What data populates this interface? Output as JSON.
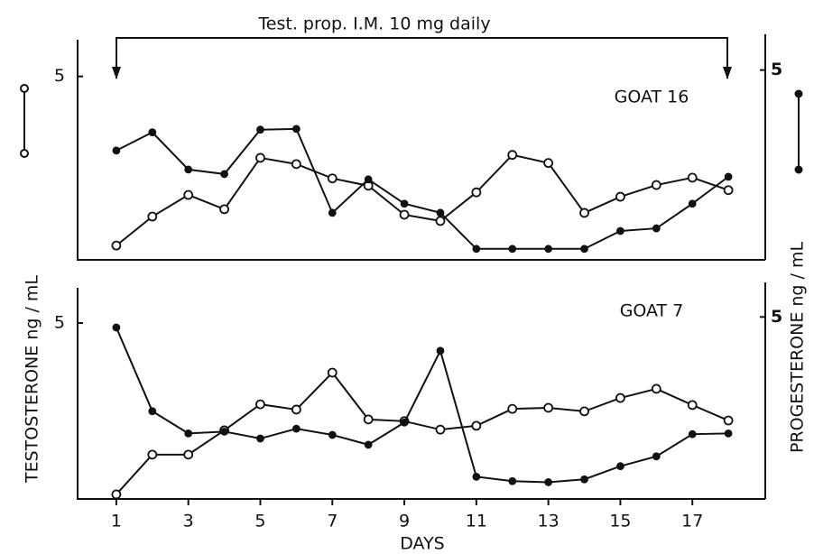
{
  "chart_data": [
    {
      "type": "line",
      "title": "GOAT 16",
      "annotation": "Test.  prop.  I.M.    10 mg  daily",
      "ylabel": "TESTOSTERONE  ng / mL",
      "y2label": "PROGESTERONE  ng / mL",
      "x": [
        1,
        2,
        3,
        4,
        5,
        6,
        7,
        8,
        9,
        10,
        11,
        12,
        13,
        14,
        15,
        16,
        17,
        18
      ],
      "xlim": [
        0,
        19
      ],
      "ylim": [
        0,
        6
      ],
      "yticks": [
        5
      ],
      "y2lim": [
        0,
        5.8
      ],
      "y2ticks": [
        5
      ],
      "series": [
        {
          "name": "Testosterone",
          "color": "#111",
          "marker": "open",
          "values": [
            0.39,
            1.18,
            1.77,
            1.38,
            2.78,
            2.61,
            2.22,
            2.02,
            1.23,
            1.06,
            1.84,
            2.86,
            2.64,
            1.28,
            1.72,
            2.04,
            2.24,
            1.9
          ]
        },
        {
          "name": "Progesterone",
          "color": "#111",
          "marker": "filled",
          "axis": "y2",
          "values": [
            2.88,
            3.36,
            2.38,
            2.26,
            3.43,
            3.45,
            1.24,
            2.12,
            1.48,
            1.24,
            0.29,
            0.29,
            0.29,
            0.29,
            0.76,
            0.83,
            1.48,
            2.19
          ]
        }
      ]
    },
    {
      "type": "line",
      "title": "GOAT  7",
      "xlabel": "DAYS",
      "x": [
        1,
        2,
        3,
        4,
        5,
        6,
        7,
        8,
        9,
        10,
        11,
        12,
        13,
        14,
        15,
        16,
        17,
        18
      ],
      "xlim": [
        0,
        19
      ],
      "xticks": [
        1,
        3,
        5,
        7,
        9,
        11,
        13,
        15,
        17
      ],
      "ylim": [
        0,
        6
      ],
      "yticks": [
        5
      ],
      "y2lim": [
        0,
        5.8
      ],
      "y2ticks": [
        5
      ],
      "series": [
        {
          "name": "Testosterone",
          "color": "#111",
          "marker": "open",
          "values": [
            0.13,
            1.26,
            1.26,
            1.95,
            2.69,
            2.54,
            3.59,
            2.26,
            2.21,
            1.97,
            2.08,
            2.56,
            2.59,
            2.49,
            2.87,
            3.13,
            2.67,
            2.23
          ]
        },
        {
          "name": "Progesterone",
          "color": "#111",
          "marker": "filled",
          "axis": "y2",
          "values": [
            4.71,
            2.41,
            1.8,
            1.85,
            1.66,
            1.93,
            1.76,
            1.49,
            2.1,
            4.07,
            0.61,
            0.49,
            0.46,
            0.54,
            0.9,
            1.17,
            1.78,
            1.8
          ]
        }
      ]
    }
  ]
}
